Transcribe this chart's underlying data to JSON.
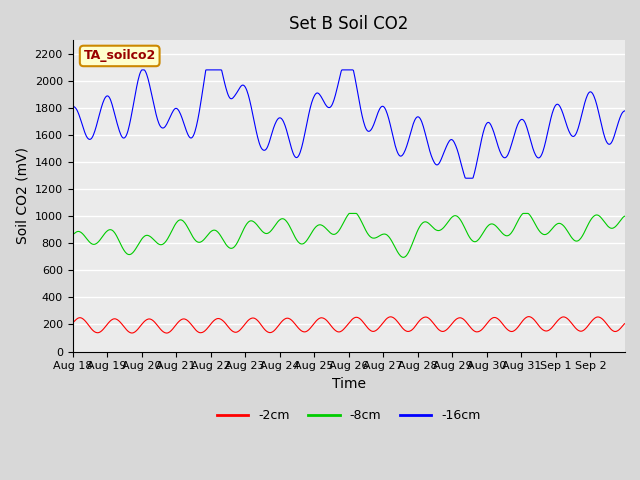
{
  "title": "Set B Soil CO2",
  "ylabel": "Soil CO2 (mV)",
  "xlabel": "Time",
  "box_label": "TA_soilco2",
  "legend": [
    "-2cm",
    "-8cm",
    "-16cm"
  ],
  "legend_colors": [
    "#ff0000",
    "#00cc00",
    "#0000ff"
  ],
  "x_tick_labels": [
    "Aug 18",
    "Aug 19",
    "Aug 20",
    "Aug 21",
    "Aug 22",
    "Aug 23",
    "Aug 24",
    "Aug 25",
    "Aug 26",
    "Aug 27",
    "Aug 28",
    "Aug 29",
    "Aug 30",
    "Aug 31",
    "Sep 1",
    "Sep 2"
  ],
  "ylim": [
    0,
    2300
  ],
  "yticks": [
    0,
    200,
    400,
    600,
    800,
    1000,
    1200,
    1400,
    1600,
    1800,
    2000,
    2200
  ],
  "bg_color": "#d8d8d8",
  "plot_bg_color": "#ebebeb",
  "title_fontsize": 12,
  "axis_fontsize": 10,
  "tick_fontsize": 8
}
